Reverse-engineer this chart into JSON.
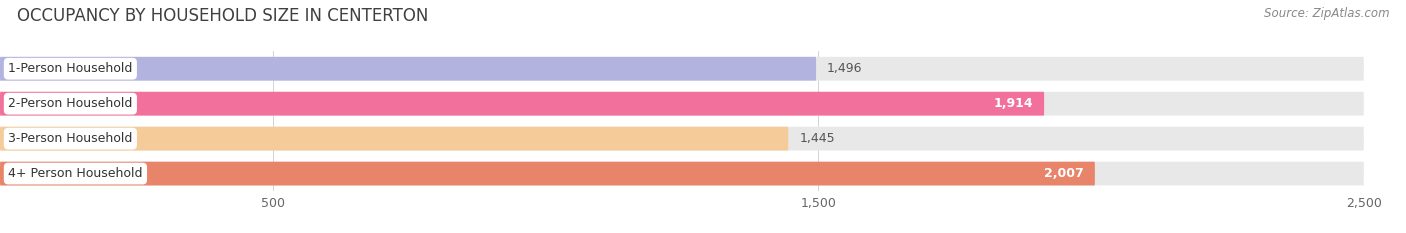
{
  "title": "OCCUPANCY BY HOUSEHOLD SIZE IN CENTERTON",
  "source": "Source: ZipAtlas.com",
  "categories": [
    "1-Person Household",
    "2-Person Household",
    "3-Person Household",
    "4+ Person Household"
  ],
  "values": [
    1496,
    1914,
    1445,
    2007
  ],
  "bar_colors": [
    "#b3b3e0",
    "#f2709c",
    "#f5cc99",
    "#e8846a"
  ],
  "bar_bg_color": "#e8e8e8",
  "xlim_max": 2500,
  "xticks": [
    500,
    1500,
    2500
  ],
  "value_labels": [
    "1,496",
    "1,914",
    "1,445",
    "2,007"
  ],
  "label_inside": [
    false,
    true,
    false,
    true
  ],
  "title_fontsize": 12,
  "source_fontsize": 8.5,
  "tick_fontsize": 9,
  "bar_label_fontsize": 9,
  "cat_label_fontsize": 9,
  "figsize": [
    14.06,
    2.33
  ],
  "dpi": 100,
  "bg_color": "#ffffff"
}
